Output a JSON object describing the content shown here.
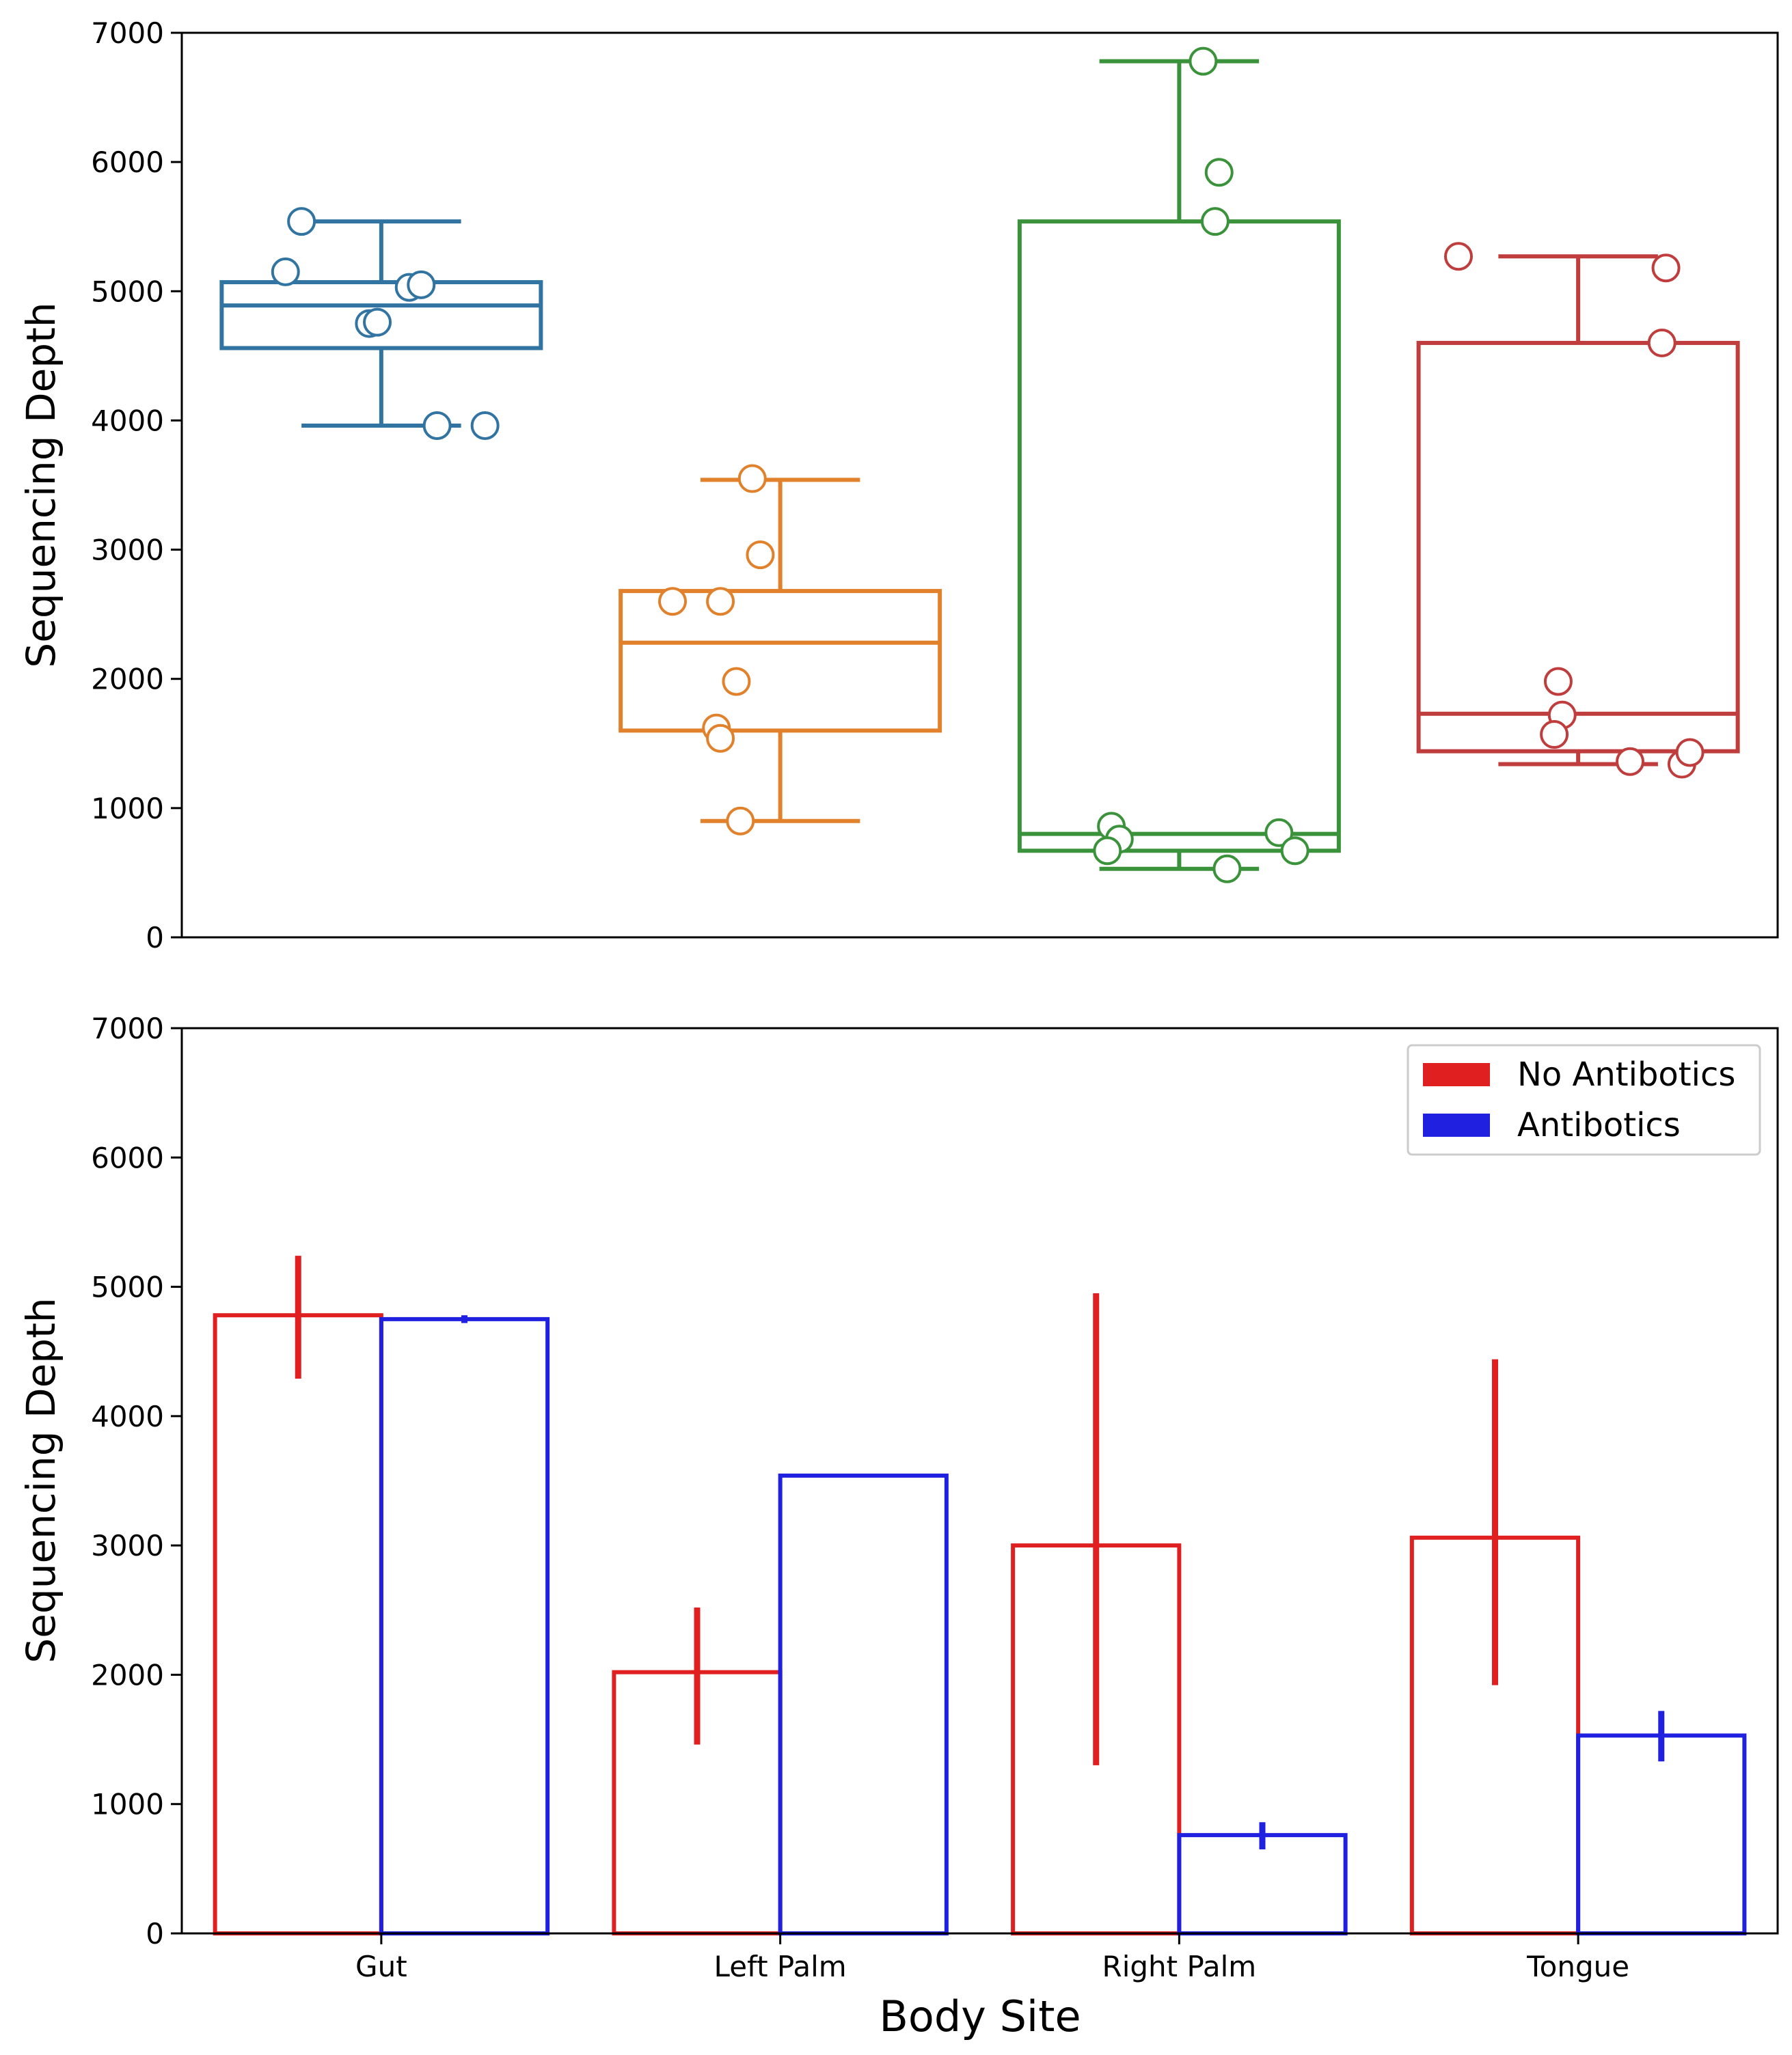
{
  "chart_data": [
    {
      "type": "box",
      "categories": [
        "Gut",
        "Left Palm",
        "Right Palm",
        "Tongue"
      ],
      "ylabel": "Sequencing Depth",
      "ylim": [
        0,
        7000
      ],
      "yticks": [
        "0",
        "1000",
        "2000",
        "3000",
        "4000",
        "5000",
        "6000",
        "7000"
      ],
      "colors": [
        "#3274a1",
        "#e1812c",
        "#3a923a",
        "#c03d3e"
      ],
      "boxes": [
        {
          "category": "Gut",
          "whisker_low": 3960,
          "q1": 4560,
          "median": 4890,
          "q3": 5070,
          "whisker_high": 5540
        },
        {
          "category": "Left Palm",
          "whisker_low": 900,
          "q1": 1600,
          "median": 2280,
          "q3": 2680,
          "whisker_high": 3540
        },
        {
          "category": "Right Palm",
          "whisker_low": 530,
          "q1": 670,
          "median": 800,
          "q3": 5540,
          "whisker_high": 6780
        },
        {
          "category": "Tongue",
          "whisker_low": 1340,
          "q1": 1440,
          "median": 1730,
          "q3": 4600,
          "whisker_high": 5270
        }
      ],
      "points": [
        {
          "category": "Gut",
          "values": [
            5540,
            5150,
            5030,
            5050,
            4750,
            4760,
            3960,
            3960
          ],
          "jitter": [
            -0.2,
            -0.24,
            0.07,
            0.1,
            -0.03,
            -0.01,
            0.14,
            0.26
          ]
        },
        {
          "category": "Left Palm",
          "values": [
            3550,
            2960,
            2600,
            2600,
            1980,
            1620,
            1540,
            900
          ],
          "jitter": [
            -0.07,
            -0.05,
            -0.27,
            -0.15,
            -0.11,
            -0.16,
            -0.15,
            -0.1
          ]
        },
        {
          "category": "Right Palm",
          "values": [
            6780,
            5920,
            5540,
            860,
            760,
            670,
            810,
            670,
            530
          ],
          "jitter": [
            0.06,
            0.1,
            0.09,
            -0.17,
            -0.15,
            -0.18,
            0.25,
            0.29,
            0.12
          ]
        },
        {
          "category": "Tongue",
          "values": [
            5270,
            5180,
            4600,
            1980,
            1720,
            1570,
            1360,
            1340,
            1430
          ],
          "jitter": [
            -0.3,
            0.22,
            0.21,
            -0.05,
            -0.04,
            -0.06,
            0.13,
            0.26,
            0.28
          ]
        }
      ]
    },
    {
      "type": "bar",
      "categories": [
        "Gut",
        "Left Palm",
        "Right Palm",
        "Tongue"
      ],
      "xlabel": "Body Site",
      "ylabel": "Sequencing Depth",
      "ylim": [
        0,
        7000
      ],
      "yticks": [
        "0",
        "1000",
        "2000",
        "3000",
        "4000",
        "5000",
        "6000",
        "7000"
      ],
      "legend_position": "top-right",
      "series": [
        {
          "name": "No Antibotics",
          "color": "#e02020",
          "values": [
            4780,
            2020,
            3000,
            3060
          ],
          "error_low": [
            4290,
            1460,
            1300,
            1920
          ],
          "error_high": [
            5240,
            2520,
            4950,
            4440
          ]
        },
        {
          "name": "Antibotics",
          "color": "#2020e0",
          "values": [
            4750,
            3540,
            760,
            1530
          ],
          "error_low": [
            4720,
            3540,
            650,
            1330
          ],
          "error_high": [
            4780,
            3540,
            860,
            1720
          ]
        }
      ]
    }
  ]
}
